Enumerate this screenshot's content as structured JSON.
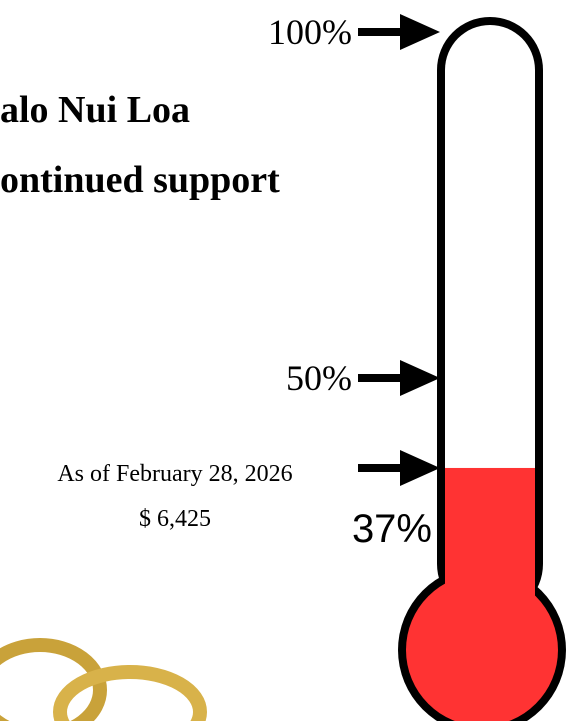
{
  "chart_data": {
    "type": "thermometer",
    "title_lines": [
      "alo Nui Loa",
      "ontinued support"
    ],
    "annotation": "As of February 28, 2026",
    "amount": "$ 6,425",
    "value": 37,
    "value_label": "37%",
    "color": "#ff3333",
    "ylim": [
      0,
      100
    ],
    "yticks": [
      {
        "value": 50,
        "label": "50%"
      },
      {
        "value": 100,
        "label": "100%"
      }
    ]
  }
}
